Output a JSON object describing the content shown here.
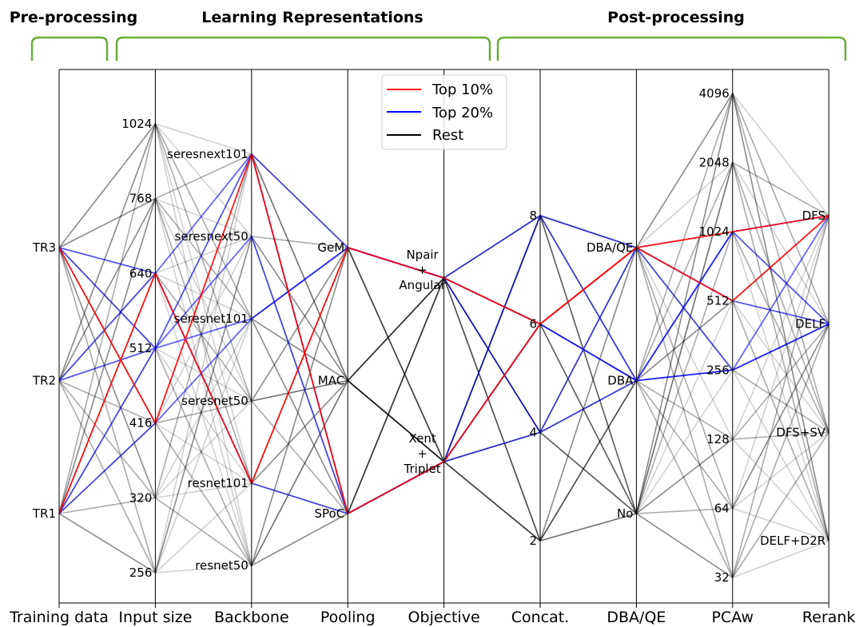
{
  "chart_data": {
    "type": "parallel_coordinates",
    "sections": [
      {
        "label": "Pre-processing",
        "axes": [
          "Training data"
        ]
      },
      {
        "label": "Learning Representations",
        "axes": [
          "Input size",
          "Backbone",
          "Pooling",
          "Objective"
        ]
      },
      {
        "label": "Post-processing",
        "axes": [
          "Concat.",
          "DBA/QE",
          "PCAw",
          "Rerank"
        ]
      }
    ],
    "axes": [
      {
        "name": "Training data",
        "categories": [
          "TR1",
          "TR2",
          "TR3"
        ]
      },
      {
        "name": "Input size",
        "categories": [
          "256",
          "320",
          "416",
          "512",
          "640",
          "768",
          "1024"
        ]
      },
      {
        "name": "Backbone",
        "categories": [
          "resnet50",
          "resnet101",
          "seresnet50",
          "seresnet101",
          "seresnext50",
          "seresnext101"
        ]
      },
      {
        "name": "Pooling",
        "categories": [
          "SPoC",
          "MAC",
          "GeM"
        ]
      },
      {
        "name": "Objective",
        "categories": [
          "Xent\n+\nTriplet",
          "Npair\n+\nAngular"
        ]
      },
      {
        "name": "Concat.",
        "categories": [
          "2",
          "4",
          "6",
          "8"
        ]
      },
      {
        "name": "DBA/QE",
        "categories": [
          "No",
          "DBA",
          "DBA/QE"
        ]
      },
      {
        "name": "PCAw",
        "categories": [
          "32",
          "64",
          "128",
          "256",
          "512",
          "1024",
          "2048",
          "4096"
        ]
      },
      {
        "name": "Rerank",
        "categories": [
          "DELF+D2R",
          "DFS+SV",
          "DELF",
          "DFS"
        ]
      }
    ],
    "legend": {
      "position": "top-center",
      "entries": [
        {
          "label": "Top 10%",
          "color": "#ff0000"
        },
        {
          "label": "Top 20%",
          "color": "#0000ff"
        },
        {
          "label": "Rest",
          "color": "#000000"
        }
      ]
    },
    "series": [
      {
        "group": "Top 10%",
        "values": [
          "TR3",
          "416",
          "seresnext101",
          "SPoC",
          "Xent\n+\nTriplet",
          "6",
          "DBA/QE",
          "1024",
          "DFS"
        ]
      },
      {
        "group": "Top 10%",
        "values": [
          "TR1",
          "640",
          "resnet101",
          "GeM",
          "Npair\n+\nAngular",
          "6",
          "DBA/QE",
          "512",
          "DFS"
        ]
      },
      {
        "group": "Top 20%",
        "values": [
          "TR2",
          "640",
          "seresnext101",
          "GeM",
          "Npair\n+\nAngular",
          "8",
          "DBA",
          "256",
          "DELF"
        ]
      },
      {
        "group": "Top 20%",
        "values": [
          "TR3",
          "512",
          "seresnext50",
          "SPoC",
          "Xent\n+\nTriplet",
          "4",
          "DBA",
          "1024",
          "DELF"
        ]
      },
      {
        "group": "Top 20%",
        "values": [
          "TR1",
          "416",
          "seresnet101",
          "GeM",
          "Npair\n+\nAngular",
          "4",
          "DBA/QE",
          "512",
          "DELF"
        ]
      },
      {
        "group": "Top 20%",
        "values": [
          "TR3",
          "640",
          "resnet101",
          "SPoC",
          "Xent\n+\nTriplet",
          "8",
          "DBA/QE",
          "256",
          "DFS"
        ]
      },
      {
        "group": "Top 20%",
        "values": [
          "TR2",
          "512",
          "seresnet101",
          "GeM",
          "Npair\n+\nAngular",
          "6",
          "DBA",
          "1024",
          "DFS"
        ]
      },
      {
        "group": "Top 20%",
        "values": [
          "TR1",
          "512",
          "seresnext101",
          "SPoC",
          "Xent\n+\nTriplet",
          "6",
          "DBA",
          "256",
          "DELF"
        ]
      },
      {
        "group": "Rest",
        "values": [
          "TR1",
          "256",
          "resnet50",
          "MAC",
          "Xent\n+\nTriplet",
          "2",
          "No",
          "32",
          "DELF+D2R"
        ]
      },
      {
        "group": "Rest",
        "values": [
          "TR2",
          "1024",
          "seresnext101",
          "GeM",
          "Npair\n+\nAngular",
          "8",
          "DBA/QE",
          "4096",
          "DFS"
        ]
      },
      {
        "group": "Rest",
        "values": [
          "TR3",
          "768",
          "seresnet50",
          "MAC",
          "Npair\n+\nAngular",
          "4",
          "No",
          "2048",
          "DFS+SV"
        ]
      },
      {
        "group": "Rest",
        "values": [
          "TR1",
          "320",
          "resnet50",
          "SPoC",
          "Xent\n+\nTriplet",
          "2",
          "DBA",
          "64",
          "DELF+D2R"
        ]
      },
      {
        "group": "Rest",
        "values": [
          "TR3",
          "1024",
          "seresnet101",
          "MAC",
          "Xent\n+\nTriplet",
          "6",
          "No",
          "128",
          "DFS+SV"
        ]
      },
      {
        "group": "Rest",
        "values": [
          "TR2",
          "320",
          "seresnet50",
          "GeM",
          "Npair\n+\nAngular",
          "2",
          "DBA",
          "32",
          "DELF"
        ]
      },
      {
        "group": "Rest",
        "values": [
          "TR1",
          "768",
          "seresnext50",
          "MAC",
          "Xent\n+\nTriplet",
          "8",
          "DBA/QE",
          "4096",
          "DELF+D2R"
        ]
      },
      {
        "group": "Rest",
        "values": [
          "TR3",
          "256",
          "resnet101",
          "MAC",
          "Npair\n+\nAngular",
          "2",
          "No",
          "64",
          "DELF"
        ]
      },
      {
        "group": "Rest",
        "values": [
          "TR2",
          "256",
          "seresnext50",
          "SPoC",
          "Npair\n+\nAngular",
          "4",
          "DBA",
          "2048",
          "DFS"
        ]
      },
      {
        "group": "Rest",
        "values": [
          "TR1",
          "1024",
          "seresnet50",
          "GeM",
          "Xent\n+\nTriplet",
          "2",
          "No",
          "128",
          "DELF"
        ]
      },
      {
        "group": "Rest",
        "values": [
          "TR3",
          "320",
          "resnet50",
          "GeM",
          "Xent\n+\nTriplet",
          "4",
          "DBA/QE",
          "64",
          "DFS+SV"
        ]
      },
      {
        "group": "Rest",
        "values": [
          "TR2",
          "768",
          "resnet101",
          "MAC",
          "Xent\n+\nTriplet",
          "8",
          "No",
          "32",
          "DFS+SV"
        ]
      },
      {
        "group": "Rest",
        "values": [
          "TR1",
          "640",
          "seresnet50",
          "SPoC",
          "Npair\n+\nAngular",
          "2",
          "DBA",
          "2048",
          "DELF+D2R"
        ]
      },
      {
        "group": "Rest",
        "values": [
          "TR3",
          "416",
          "resnet50",
          "MAC",
          "Npair\n+\nAngular",
          "6",
          "DBA/QE",
          "128",
          "DELF+D2R"
        ]
      },
      {
        "group": "Rest",
        "values": [
          "TR2",
          "416",
          "seresnext50",
          "GeM",
          "Xent\n+\nTriplet",
          "2",
          "No",
          "4096",
          "DELF"
        ]
      },
      {
        "group": "Rest",
        "values": [
          "TR1",
          "1024",
          "seresnet101",
          "SPoC",
          "Npair\n+\nAngular",
          "4",
          "DBA",
          "512",
          "DFS+SV"
        ]
      },
      {
        "group": "Rest",
        "values": [
          "TR3",
          "512",
          "resnet50",
          "GeM",
          "Xent\n+\nTriplet",
          "8",
          "No",
          "1024",
          "DELF+D2R"
        ]
      },
      {
        "group": "Rest",
        "values": [
          "TR2",
          "640",
          "seresnet50",
          "MAC",
          "Xent\n+\nTriplet",
          "4",
          "DBA/QE",
          "64",
          "DELF"
        ]
      },
      {
        "group": "Rest",
        "values": [
          "TR1",
          "320",
          "seresnext101",
          "MAC",
          "Npair\n+\nAngular",
          "6",
          "No",
          "2048",
          "DFS"
        ]
      },
      {
        "group": "Rest",
        "values": [
          "TR3",
          "768",
          "resnet101",
          "SPoC",
          "Xent\n+\nTriplet",
          "2",
          "DBA/QE",
          "32",
          "DELF"
        ]
      },
      {
        "group": "Rest",
        "values": [
          "TR2",
          "1024",
          "resnet50",
          "SPoC",
          "Npair\n+\nAngular",
          "6",
          "DBA",
          "4096",
          "DFS+SV"
        ]
      },
      {
        "group": "Rest",
        "values": [
          "TR1",
          "512",
          "seresnet50",
          "MAC",
          "Xent\n+\nTriplet",
          "8",
          "DBA",
          "128",
          "DFS"
        ]
      },
      {
        "group": "Rest",
        "values": [
          "TR3",
          "256",
          "seresnext50",
          "MAC",
          "Xent\n+\nTriplet",
          "4",
          "No",
          "256",
          "DELF+D2R"
        ]
      },
      {
        "group": "Rest",
        "values": [
          "TR2",
          "768",
          "seresnext101",
          "SPoC",
          "Xent\n+\nTriplet",
          "2",
          "DBA/QE",
          "2048",
          "DELF+D2R"
        ]
      },
      {
        "group": "Rest",
        "values": [
          "TR1",
          "416",
          "resnet101",
          "MAC",
          "Npair\n+\nAngular",
          "8",
          "No",
          "4096",
          "DFS+SV"
        ]
      },
      {
        "group": "Rest",
        "values": [
          "TR3",
          "320",
          "seresnet101",
          "SPoC",
          "Npair\n+\nAngular",
          "6",
          "DBA",
          "64",
          "DFS"
        ]
      },
      {
        "group": "Rest",
        "values": [
          "TR2",
          "256",
          "seresnet101",
          "MAC",
          "Xent\n+\nTriplet",
          "6",
          "DBA/QE",
          "32",
          "DFS"
        ]
      },
      {
        "group": "Rest",
        "values": [
          "TR1",
          "768",
          "seresnet101",
          "GeM",
          "Xent\n+\nTriplet",
          "4",
          "No",
          "1024",
          "DELF"
        ]
      },
      {
        "group": "Rest",
        "values": [
          "TR3",
          "1024",
          "seresnext50",
          "SPoC",
          "Xent\n+\nTriplet",
          "8",
          "DBA",
          "512",
          "DELF+D2R"
        ]
      },
      {
        "group": "Rest",
        "values": [
          "TR2",
          "320",
          "resnet101",
          "GeM",
          "Npair\n+\nAngular",
          "4",
          "No",
          "128",
          "DFS+SV"
        ]
      },
      {
        "group": "Rest",
        "values": [
          "TR1",
          "256",
          "seresnext101",
          "MAC",
          "Npair\n+\nAngular",
          "2",
          "DBA/QE",
          "256",
          "DFS+SV"
        ]
      },
      {
        "group": "Rest",
        "values": [
          "TR3",
          "640",
          "seresnext50",
          "MAC",
          "Npair\n+\nAngular",
          "2",
          "DBA",
          "4096",
          "DELF"
        ]
      },
      {
        "group": "Rest",
        "values": [
          "TR2",
          "512",
          "resnet50",
          "SPoC",
          "Xent\n+\nTriplet",
          "8",
          "No",
          "512",
          "DELF+D2R"
        ]
      },
      {
        "group": "Rest",
        "values": [
          "TR1",
          "416",
          "seresnet50",
          "GeM",
          "Npair\n+\nAngular",
          "8",
          "DBA",
          "32",
          "DFS+SV"
        ]
      },
      {
        "group": "Rest",
        "values": [
          "TR3",
          "512",
          "seresnext101",
          "GeM",
          "Xent\n+\nTriplet",
          "6",
          "No",
          "2048",
          "DFS+SV"
        ]
      },
      {
        "group": "Rest",
        "values": [
          "TR2",
          "416",
          "resnet50",
          "MAC",
          "Npair\n+\nAngular",
          "4",
          "DBA/QE",
          "4096",
          "DELF+D2R"
        ]
      },
      {
        "group": "Rest",
        "values": [
          "TR1",
          "640",
          "seresnet101",
          "MAC",
          "Xent\n+\nTriplet",
          "6",
          "DBA/QE",
          "1024",
          "DFS+SV"
        ]
      },
      {
        "group": "Rest",
        "values": [
          "TR3",
          "1024",
          "resnet101",
          "GeM",
          "Xent\n+\nTriplet",
          "2",
          "DBA",
          "128",
          "DELF"
        ]
      },
      {
        "group": "Rest",
        "values": [
          "TR2",
          "640",
          "resnet50",
          "GeM",
          "Npair\n+\nAngular",
          "8",
          "No",
          "64",
          "DELF"
        ]
      },
      {
        "group": "Rest",
        "values": [
          "TR1",
          "768",
          "seresnext101",
          "MAC",
          "Npair\n+\nAngular",
          "4",
          "DBA",
          "256",
          "DELF"
        ]
      },
      {
        "group": "Rest",
        "values": [
          "TR3",
          "320",
          "seresnext101",
          "MAC",
          "Xent\n+\nTriplet",
          "8",
          "DBA/QE",
          "512",
          "DFS"
        ]
      },
      {
        "group": "Rest",
        "values": [
          "TR2",
          "768",
          "seresnet101",
          "SPoC",
          "Npair\n+\nAngular",
          "6",
          "No",
          "4096",
          "DELF+D2R"
        ]
      },
      {
        "group": "Rest",
        "values": [
          "TR1",
          "512",
          "resnet101",
          "SPoC",
          "Npair\n+\nAngular",
          "2",
          "DBA",
          "1024",
          "DFS+SV"
        ]
      },
      {
        "group": "Rest",
        "values": [
          "TR3",
          "416",
          "seresnet50",
          "SPoC",
          "Npair\n+\nAngular",
          "4",
          "No",
          "32",
          "DFS"
        ]
      },
      {
        "group": "Rest",
        "values": [
          "TR2",
          "1024",
          "seresnet50",
          "MAC",
          "Xent\n+\nTriplet",
          "8",
          "DBA/QE",
          "256",
          "DFS+SV"
        ]
      },
      {
        "group": "Rest",
        "values": [
          "TR1",
          "256",
          "seresnext50",
          "GeM",
          "Npair\n+\nAngular",
          "6",
          "No",
          "2048",
          "DELF"
        ]
      },
      {
        "group": "Rest",
        "values": [
          "TR3",
          "768",
          "resnet50",
          "MAC",
          "Xent\n+\nTriplet",
          "6",
          "DBA",
          "512",
          "DELF"
        ]
      }
    ]
  }
}
